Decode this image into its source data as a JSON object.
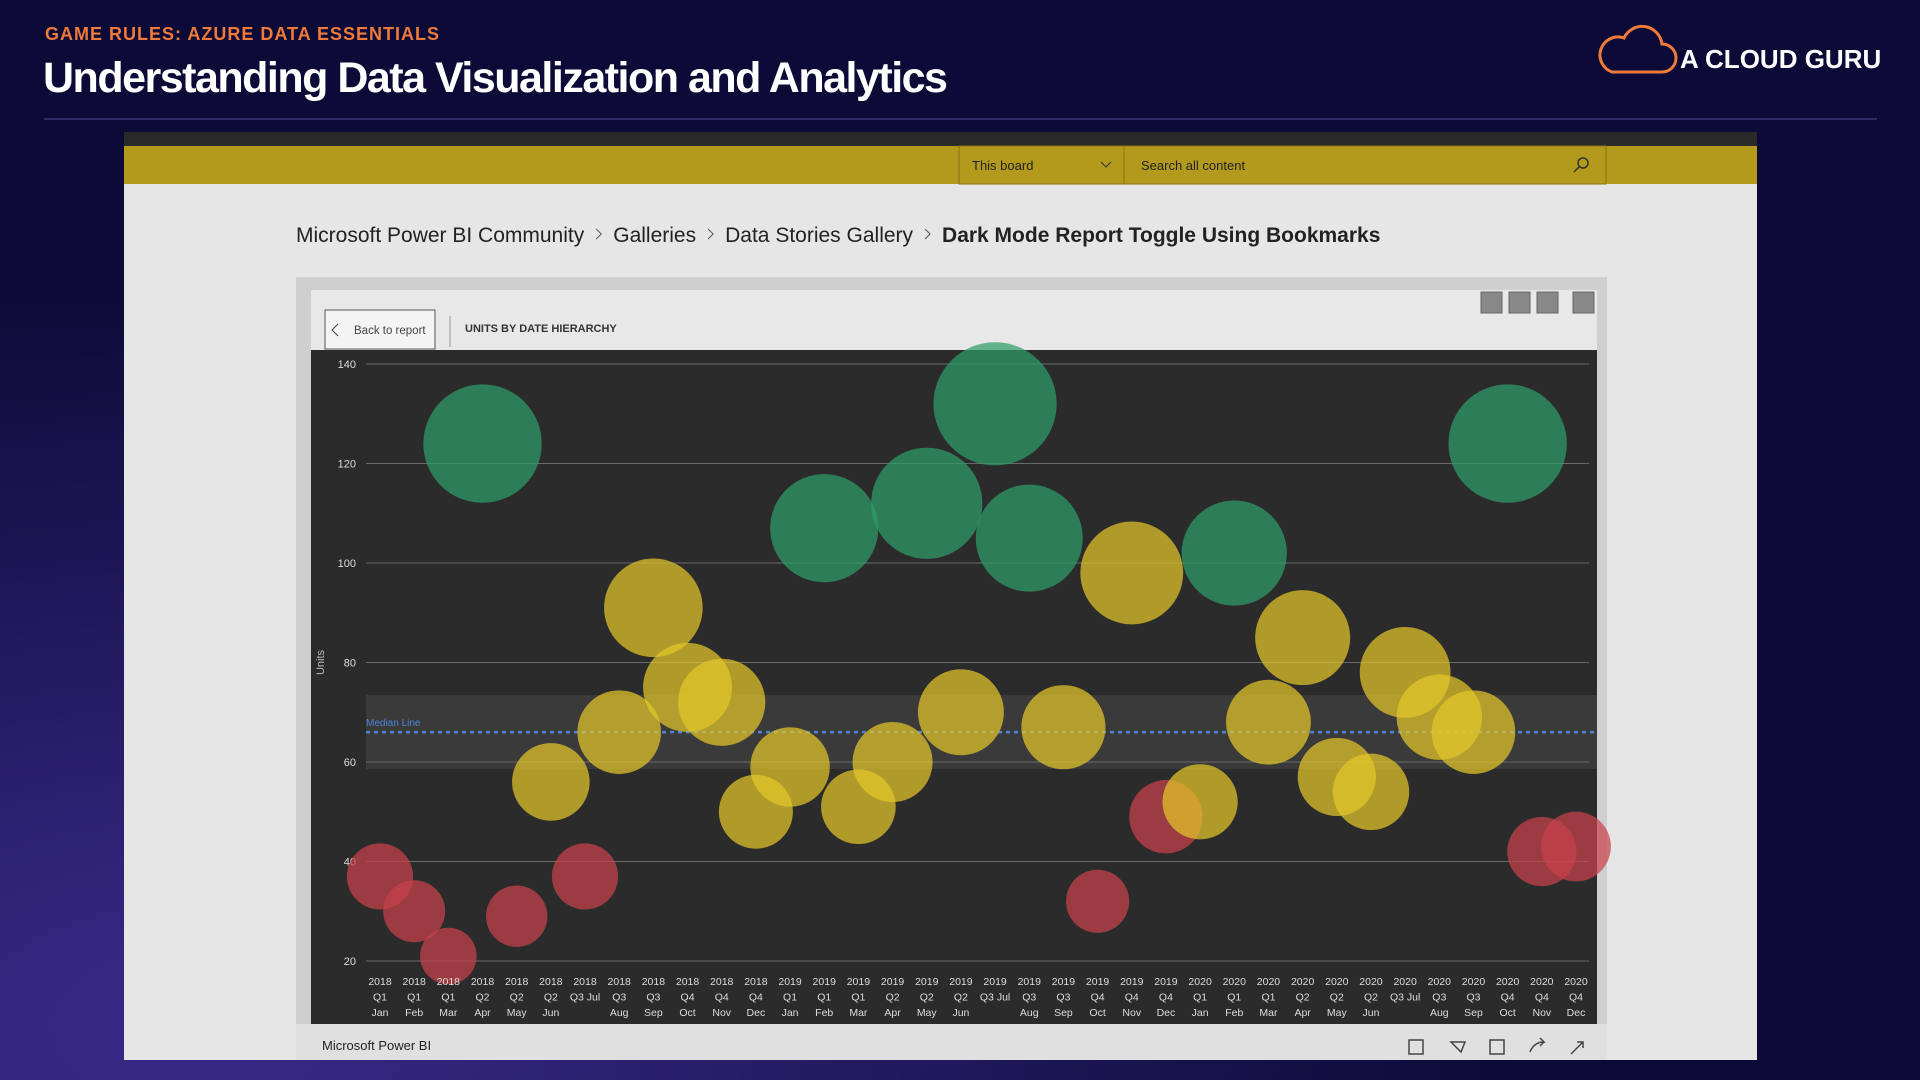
{
  "header": {
    "kicker": "GAME RULES: AZURE DATA ESSENTIALS",
    "title": "Understanding Data Visualization and Analytics",
    "logo": "A CLOUD GURU"
  },
  "nav": {
    "scope": "This board",
    "search_placeholder": "Search all content"
  },
  "breadcrumb": [
    "Microsoft Power BI Community",
    "Galleries",
    "Data Stories Gallery",
    "Dark Mode Report Toggle Using Bookmarks"
  ],
  "report": {
    "back": "Back to report",
    "visual_title": "UNITS BY DATE HIERARCHY"
  },
  "footer": {
    "brand": "Microsoft Power BI"
  },
  "chart_data": {
    "type": "bubble",
    "y_label": "Units",
    "categories": [
      [
        "2018",
        "Q1",
        "Jan"
      ],
      [
        "2018",
        "Q1",
        "Feb"
      ],
      [
        "2018",
        "Q1",
        "Mar"
      ],
      [
        "2018",
        "Q2",
        "Apr"
      ],
      [
        "2018",
        "Q2",
        "May"
      ],
      [
        "2018",
        "Q2",
        "Jun"
      ],
      [
        "2018",
        "Q3 Jul"
      ],
      [
        "2018",
        "Q3",
        "Aug"
      ],
      [
        "2018",
        "Q3",
        "Sep"
      ],
      [
        "2018",
        "Q4",
        "Oct"
      ],
      [
        "2018",
        "Q4",
        "Nov"
      ],
      [
        "2018",
        "Q4",
        "Dec"
      ],
      [
        "2019",
        "Q1",
        "Jan"
      ],
      [
        "2019",
        "Q1",
        "Feb"
      ],
      [
        "2019",
        "Q1",
        "Mar"
      ],
      [
        "2019",
        "Q2",
        "Apr"
      ],
      [
        "2019",
        "Q2",
        "May"
      ],
      [
        "2019",
        "Q2",
        "Jun"
      ],
      [
        "2019",
        "Q3 Jul"
      ],
      [
        "2019",
        "Q3",
        "Aug"
      ],
      [
        "2019",
        "Q3",
        "Sep"
      ],
      [
        "2019",
        "Q4",
        "Oct"
      ],
      [
        "2019",
        "Q4",
        "Nov"
      ],
      [
        "2019",
        "Q4",
        "Dec"
      ],
      [
        "2020",
        "Q1",
        "Jan"
      ],
      [
        "2020",
        "Q1",
        "Feb"
      ],
      [
        "2020",
        "Q1",
        "Mar"
      ],
      [
        "2020",
        "Q2",
        "Apr"
      ],
      [
        "2020",
        "Q2",
        "May"
      ],
      [
        "2020",
        "Q2",
        "Jun"
      ],
      [
        "2020",
        "Q3 Jul"
      ],
      [
        "2020",
        "Q3",
        "Aug"
      ],
      [
        "2020",
        "Q3",
        "Sep"
      ],
      [
        "2020",
        "Q4",
        "Oct"
      ],
      [
        "2020",
        "Q4",
        "Nov"
      ],
      [
        "2020",
        "Q4",
        "Dec"
      ]
    ],
    "values": [
      37,
      30,
      21,
      124,
      29,
      56,
      37,
      66,
      91,
      75,
      72,
      50,
      59,
      107,
      51,
      60,
      112,
      70,
      132,
      105,
      67,
      32,
      98,
      49,
      52,
      102,
      68,
      85,
      57,
      54,
      78,
      69,
      66,
      124,
      42,
      43
    ],
    "colors": [
      "#c8414b",
      "#c8414b",
      "#c8414b",
      "#2e9e6a",
      "#c8414b",
      "#e3c62a",
      "#c8414b",
      "#e3c62a",
      "#e3c62a",
      "#e3c62a",
      "#e3c62a",
      "#e3c62a",
      "#e3c62a",
      "#2e9e6a",
      "#e3c62a",
      "#e3c62a",
      "#2e9e6a",
      "#e3c62a",
      "#2e9e6a",
      "#2e9e6a",
      "#e3c62a",
      "#c8414b",
      "#e3c62a",
      "#c8414b",
      "#e3c62a",
      "#2e9e6a",
      "#e3c62a",
      "#e3c62a",
      "#e3c62a",
      "#e3c62a",
      "#e3c62a",
      "#e3c62a",
      "#e3c62a",
      "#2e9e6a",
      "#c8414b",
      "#c8414b"
    ],
    "ylim": [
      20,
      140
    ],
    "yticks": [
      20,
      40,
      60,
      80,
      100,
      120,
      140
    ],
    "grid": true,
    "median_line": {
      "label": "Median Line",
      "value": 66,
      "color": "#4a86d8"
    }
  }
}
